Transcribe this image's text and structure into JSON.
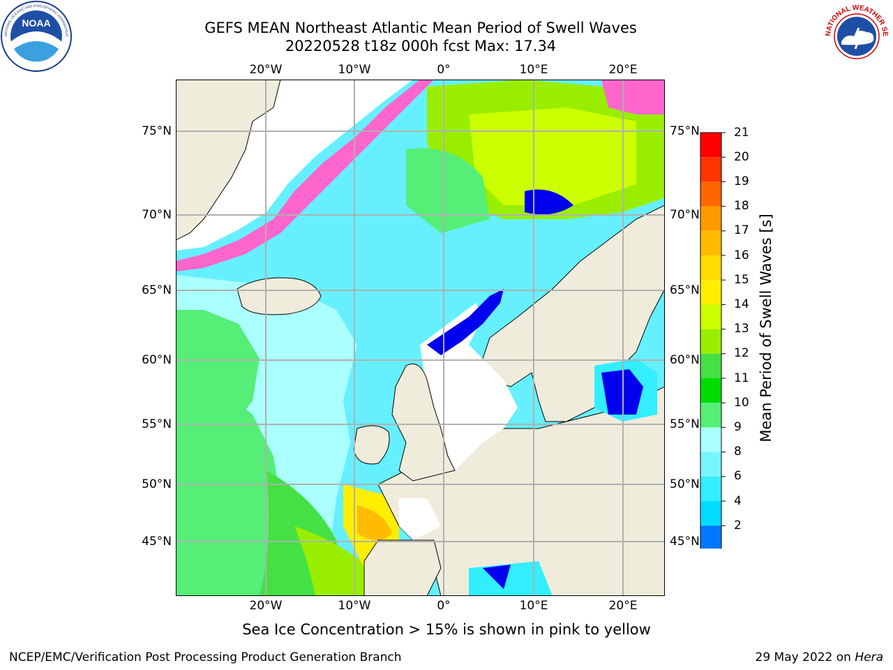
{
  "header": {
    "title_line1": "GEFS MEAN Northeast Atlantic Mean Period of Swell Waves",
    "title_line2": "20220528 t18z 000h fcst   Max: 17.34"
  },
  "logos": {
    "noaa": {
      "text": "NOAA",
      "ring_text": "NATIONAL OCEANIC AND ATMOSPHERIC ADMINISTRATION · U.S. DEPARTMENT OF COMMERCE"
    },
    "nws": {
      "ring_text": "NATIONAL WEATHER SERVICE"
    }
  },
  "map": {
    "lon_labels": [
      "20°W",
      "10°W",
      "0°",
      "10°E",
      "20°E"
    ],
    "lat_labels": [
      "75°N",
      "70°N",
      "65°N",
      "60°N",
      "55°N",
      "50°N",
      "45°N"
    ],
    "colors": {
      "land": "#efecdc",
      "grid": "#b0b0b0",
      "ice": "#ff66cc",
      "no_data": "#ffffff"
    }
  },
  "colorbar": {
    "label": "Mean Period of Swell Waves [s]",
    "ticks": [
      "21",
      "20",
      "19",
      "18",
      "17",
      "16",
      "15",
      "14",
      "13",
      "12",
      "11",
      "10",
      "9",
      "8",
      "6",
      "4",
      "2"
    ],
    "colors": [
      "#0000ee",
      "#0077ff",
      "#00ddff",
      "#33eeff",
      "#77f5ff",
      "#aaffff",
      "#55ee77",
      "#00dd00",
      "#44e044",
      "#99ee00",
      "#ccff00",
      "#ffee00",
      "#ffdd00",
      "#ffbb00",
      "#ff9900",
      "#ff6600",
      "#ff3300",
      "#ff0000"
    ]
  },
  "footer": {
    "note": "Sea Ice Concentration > 15% is shown in pink to yellow",
    "left": "NCEP/EMC/Verification Post Processing Product Generation Branch",
    "right_date": "29 May 2022 on ",
    "right_host": "Hera"
  }
}
